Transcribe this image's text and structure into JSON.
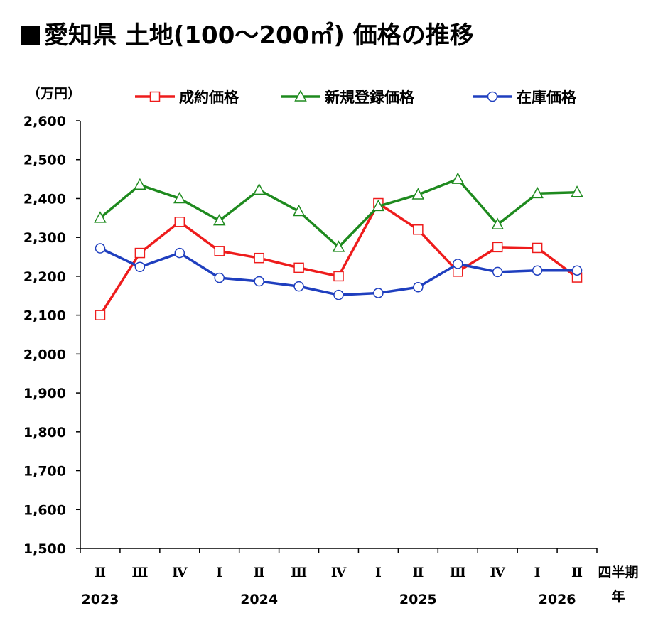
{
  "title": "愛知県 土地(100～200㎡) 価格の推移",
  "chart_data": {
    "type": "line",
    "title": "愛知県 土地(100～200㎡) 価格の推移",
    "ylabel": "（万円）",
    "xlabel_quarter": "四半期",
    "xlabel_year": "年",
    "ylim": [
      1500,
      2600
    ],
    "yticks": [
      "1,500",
      "1,600",
      "1,700",
      "1,800",
      "1,900",
      "2,000",
      "2,100",
      "2,200",
      "2,300",
      "2,400",
      "2,500",
      "2,600"
    ],
    "categories": [
      "Ⅱ",
      "Ⅲ",
      "Ⅳ",
      "Ⅰ",
      "Ⅱ",
      "Ⅲ",
      "Ⅳ",
      "Ⅰ",
      "Ⅱ",
      "Ⅲ",
      "Ⅳ",
      "Ⅰ",
      "Ⅱ"
    ],
    "years": [
      {
        "label": "2023",
        "index": 0
      },
      {
        "label": "2024",
        "index": 4
      },
      {
        "label": "2025",
        "index": 8
      },
      {
        "label": "2026",
        "index": 11.5
      }
    ],
    "legend_position": "top",
    "series": [
      {
        "name": "成約価格",
        "color": "#ee1c1c",
        "marker": "square",
        "values": [
          2100,
          2260,
          2340,
          2265,
          2247,
          2222,
          2200,
          2388,
          2320,
          2212,
          2275,
          2273,
          2197
        ]
      },
      {
        "name": "新規登録価格",
        "color": "#1e8a1e",
        "marker": "triangle",
        "values": [
          2350,
          2435,
          2400,
          2343,
          2422,
          2367,
          2275,
          2380,
          2410,
          2450,
          2333,
          2413,
          2416
        ]
      },
      {
        "name": "在庫価格",
        "color": "#1f3fbf",
        "marker": "circle",
        "values": [
          2272,
          2224,
          2260,
          2196,
          2187,
          2174,
          2152,
          2157,
          2172,
          2232,
          2211,
          2215,
          2215
        ]
      }
    ]
  }
}
